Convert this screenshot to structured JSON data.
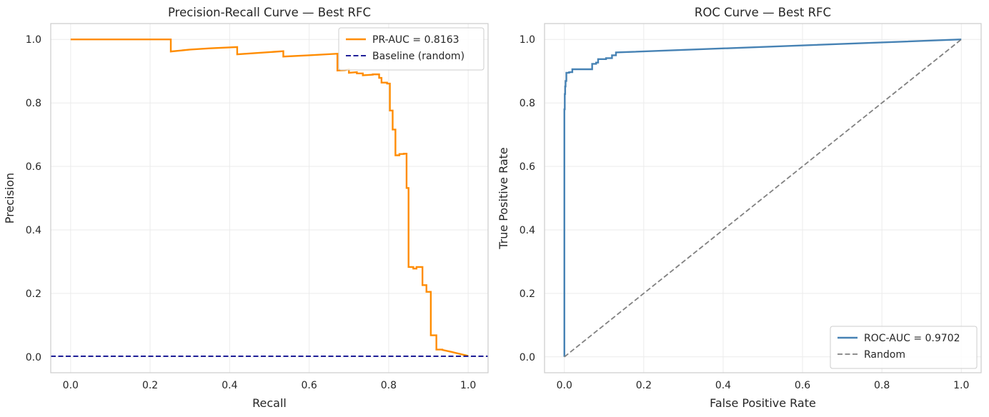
{
  "chart_data": [
    {
      "type": "line",
      "title": "Precision-Recall Curve — Best RFC",
      "xlabel": "Recall",
      "ylabel": "Precision",
      "xlim": [
        -0.05,
        1.05
      ],
      "ylim": [
        -0.05,
        1.05
      ],
      "xticks": [
        0.0,
        0.2,
        0.4,
        0.6,
        0.8,
        1.0
      ],
      "yticks": [
        0.0,
        0.2,
        0.4,
        0.6,
        0.8,
        1.0
      ],
      "tick_labels": [
        "0.0",
        "0.2",
        "0.4",
        "0.6",
        "0.8",
        "1.0"
      ],
      "grid": true,
      "legend_position": "top-right",
      "series": [
        {
          "name": "PR-AUC = 0.8163",
          "color": "#ff8c00",
          "style": "solid",
          "x": [
            0.0,
            0.252,
            0.252,
            0.3,
            0.35,
            0.419,
            0.419,
            0.535,
            0.535,
            0.6,
            0.671,
            0.671,
            0.69,
            0.7,
            0.7,
            0.72,
            0.72,
            0.735,
            0.735,
            0.76,
            0.76,
            0.776,
            0.776,
            0.782,
            0.782,
            0.796,
            0.796,
            0.803,
            0.803,
            0.81,
            0.81,
            0.817,
            0.817,
            0.827,
            0.827,
            0.838,
            0.838,
            0.845,
            0.845,
            0.85,
            0.85,
            0.862,
            0.862,
            0.87,
            0.87,
            0.885,
            0.885,
            0.895,
            0.895,
            0.906,
            0.906,
            0.92,
            0.92,
            0.935,
            0.935,
            0.96,
            1.0
          ],
          "y": [
            1.0,
            1.0,
            0.962,
            0.968,
            0.972,
            0.976,
            0.953,
            0.963,
            0.946,
            0.95,
            0.955,
            0.902,
            0.903,
            0.906,
            0.895,
            0.897,
            0.893,
            0.893,
            0.887,
            0.889,
            0.89,
            0.89,
            0.879,
            0.879,
            0.864,
            0.864,
            0.861,
            0.861,
            0.776,
            0.776,
            0.716,
            0.716,
            0.635,
            0.635,
            0.639,
            0.639,
            0.64,
            0.64,
            0.532,
            0.532,
            0.283,
            0.283,
            0.278,
            0.278,
            0.283,
            0.283,
            0.226,
            0.226,
            0.205,
            0.205,
            0.068,
            0.068,
            0.023,
            0.023,
            0.022,
            0.015,
            0.003
          ]
        },
        {
          "name": "Baseline (random)",
          "color": "#00008b",
          "style": "dashed",
          "x": [
            -0.05,
            1.05
          ],
          "y": [
            0.002,
            0.002
          ]
        }
      ]
    },
    {
      "type": "line",
      "title": "ROC Curve — Best RFC",
      "xlabel": "False Positive Rate",
      "ylabel": "True Positive Rate",
      "xlim": [
        -0.05,
        1.05
      ],
      "ylim": [
        -0.05,
        1.05
      ],
      "xticks": [
        0.0,
        0.2,
        0.4,
        0.6,
        0.8,
        1.0
      ],
      "yticks": [
        0.0,
        0.2,
        0.4,
        0.6,
        0.8,
        1.0
      ],
      "tick_labels": [
        "0.0",
        "0.2",
        "0.4",
        "0.6",
        "0.8",
        "1.0"
      ],
      "grid": true,
      "legend_position": "bottom-right",
      "series": [
        {
          "name": "ROC-AUC = 0.9702",
          "color": "#4682b4",
          "style": "solid",
          "x": [
            0.0,
            0.0,
            0.001,
            0.001,
            0.002,
            0.002,
            0.003,
            0.003,
            0.005,
            0.005,
            0.012,
            0.012,
            0.02,
            0.02,
            0.07,
            0.07,
            0.08,
            0.08,
            0.085,
            0.085,
            0.105,
            0.105,
            0.12,
            0.12,
            0.13,
            0.13,
            1.0
          ],
          "y": [
            0.0,
            0.78,
            0.78,
            0.828,
            0.828,
            0.852,
            0.852,
            0.869,
            0.869,
            0.895,
            0.895,
            0.897,
            0.897,
            0.906,
            0.906,
            0.923,
            0.923,
            0.927,
            0.927,
            0.938,
            0.938,
            0.941,
            0.941,
            0.95,
            0.95,
            0.959,
            1.0
          ]
        },
        {
          "name": "Random",
          "color": "#808080",
          "style": "dashed",
          "x": [
            0.0,
            1.0
          ],
          "y": [
            0.0,
            1.0
          ]
        }
      ]
    }
  ]
}
